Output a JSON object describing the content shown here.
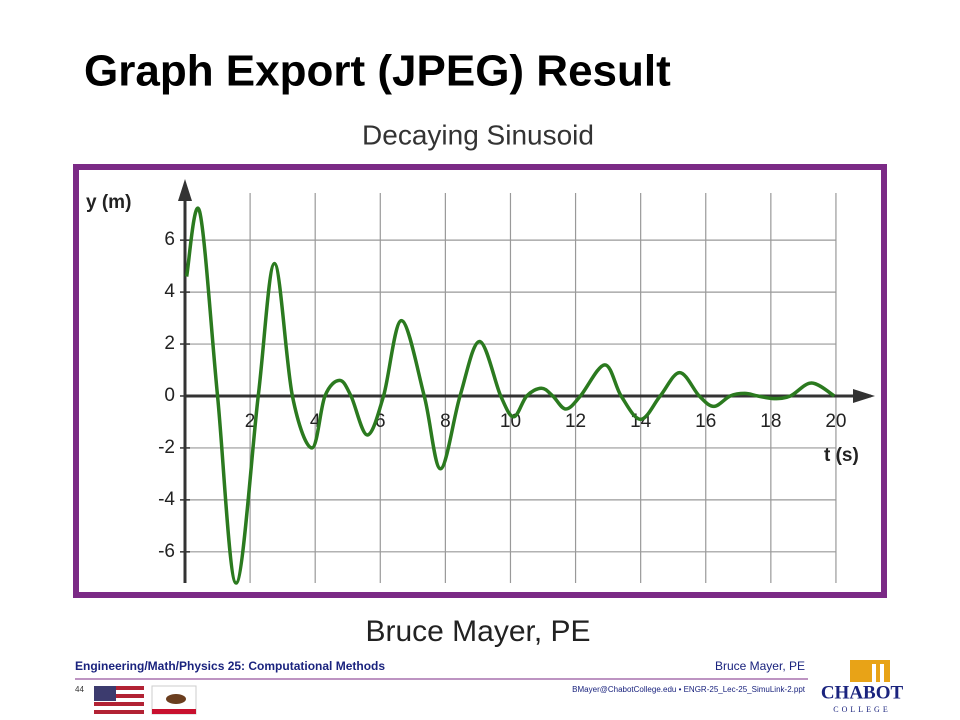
{
  "slide": {
    "title": "Graph Export (JPEG) Result",
    "caption": "Bruce Mayer, PE",
    "footer": {
      "course": "Engineering/Math/Physics 25: Computational Methods",
      "author": "Bruce Mayer, PE",
      "page": "44",
      "file": "BMayer@ChabotCollege.edu  • ENGR-25_Lec-25_SimuLink-2.ppt",
      "logo_name": "CHABOT",
      "logo_sub": "COLLEGE"
    }
  },
  "chart_data": {
    "type": "line",
    "title": "Decaying Sinusoid",
    "y_label": "y (m)",
    "x_label": "t (s)",
    "color": "#2b7a1f",
    "grid": true,
    "x": [
      0.05,
      0.45,
      1.0,
      1.57,
      2.25,
      2.75,
      3.3,
      3.9,
      4.3,
      4.75,
      5.1,
      5.6,
      6.1,
      6.65,
      7.35,
      7.85,
      8.45,
      9.05,
      9.7,
      10.1,
      10.5,
      10.95,
      11.3,
      11.7,
      12.15,
      12.9,
      13.4,
      14.0,
      14.6,
      15.2,
      15.8,
      16.25,
      16.75,
      17.2,
      17.6,
      18.1,
      18.6,
      19.25,
      19.95
    ],
    "values": [
      4.6,
      7.1,
      0,
      -7.2,
      0,
      5.1,
      0,
      -2.0,
      0,
      0.6,
      0,
      -1.5,
      0,
      2.9,
      0,
      -2.8,
      0,
      2.1,
      0,
      -0.8,
      0,
      0.3,
      0,
      -0.5,
      0,
      1.2,
      0,
      -0.9,
      0,
      0.9,
      0,
      -0.4,
      0,
      0.1,
      0,
      -0.1,
      0,
      0.5,
      0
    ],
    "xlim": [
      0,
      21.2
    ],
    "ylim": [
      -7.2,
      8.2
    ],
    "xticks": [
      2,
      4,
      6,
      8,
      10,
      12,
      14,
      16,
      18,
      20
    ],
    "yticks": [
      -6,
      -4,
      -2,
      0,
      2,
      4,
      6
    ]
  }
}
